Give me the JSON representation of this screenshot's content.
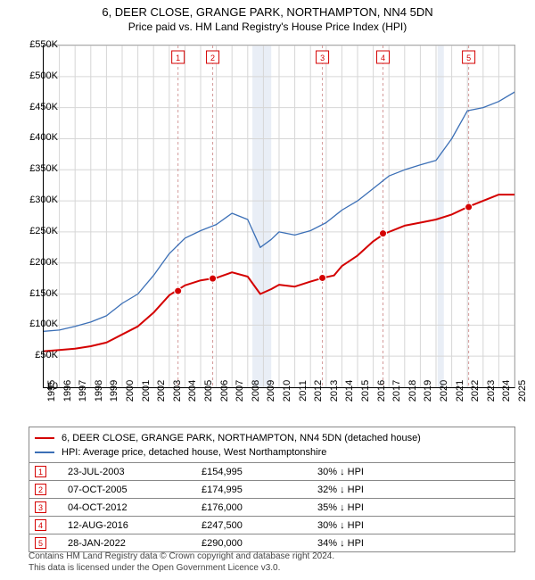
{
  "title": {
    "line1": "6, DEER CLOSE, GRANGE PARK, NORTHAMPTON, NN4 5DN",
    "line2": "Price paid vs. HM Land Registry's House Price Index (HPI)"
  },
  "chart": {
    "type": "line",
    "background_color": "#ffffff",
    "grid_color": "#d6d6d6",
    "recession_band_color": "#e9eef6",
    "axis_color": "#000000",
    "ylim": [
      0,
      550
    ],
    "ytick_step": 50,
    "y_unit_prefix": "£",
    "y_unit_suffix": "K",
    "x_years": [
      1995,
      1996,
      1997,
      1998,
      1999,
      2000,
      2001,
      2002,
      2003,
      2004,
      2005,
      2006,
      2007,
      2008,
      2009,
      2010,
      2011,
      2012,
      2013,
      2014,
      2015,
      2016,
      2017,
      2018,
      2019,
      2020,
      2021,
      2022,
      2023,
      2024,
      2025
    ],
    "recession_bands": [
      [
        2008.3,
        2009.5
      ],
      [
        2020.1,
        2020.5
      ]
    ],
    "series": [
      {
        "name": "property",
        "label": "6, DEER CLOSE, GRANGE PARK, NORTHAMPTON, NN4 5DN (detached house)",
        "color": "#d40000",
        "width": 2,
        "data": [
          [
            1995,
            58
          ],
          [
            1996,
            60
          ],
          [
            1997,
            62
          ],
          [
            1998,
            66
          ],
          [
            1999,
            72
          ],
          [
            2000,
            85
          ],
          [
            2001,
            98
          ],
          [
            2002,
            120
          ],
          [
            2003,
            148
          ],
          [
            2004,
            164
          ],
          [
            2005,
            172
          ],
          [
            2006,
            176
          ],
          [
            2007,
            185
          ],
          [
            2008,
            178
          ],
          [
            2008.8,
            150
          ],
          [
            2009.5,
            158
          ],
          [
            2010,
            165
          ],
          [
            2011,
            162
          ],
          [
            2012,
            170
          ],
          [
            2012.8,
            176
          ],
          [
            2013.5,
            180
          ],
          [
            2014,
            195
          ],
          [
            2015,
            212
          ],
          [
            2016,
            235
          ],
          [
            2016.7,
            247
          ],
          [
            2017.5,
            255
          ],
          [
            2018,
            260
          ],
          [
            2019,
            265
          ],
          [
            2020,
            270
          ],
          [
            2021,
            278
          ],
          [
            2022,
            290
          ],
          [
            2023,
            300
          ],
          [
            2024,
            310
          ],
          [
            2025,
            310
          ]
        ]
      },
      {
        "name": "hpi",
        "label": "HPI: Average price, detached house, West Northamptonshire",
        "color": "#3b6fb6",
        "width": 1.3,
        "data": [
          [
            1995,
            90
          ],
          [
            1996,
            92
          ],
          [
            1997,
            98
          ],
          [
            1998,
            105
          ],
          [
            1999,
            115
          ],
          [
            2000,
            135
          ],
          [
            2001,
            150
          ],
          [
            2002,
            180
          ],
          [
            2003,
            215
          ],
          [
            2004,
            240
          ],
          [
            2005,
            252
          ],
          [
            2006,
            262
          ],
          [
            2007,
            280
          ],
          [
            2008,
            270
          ],
          [
            2008.8,
            225
          ],
          [
            2009.5,
            238
          ],
          [
            2010,
            250
          ],
          [
            2011,
            245
          ],
          [
            2012,
            252
          ],
          [
            2013,
            265
          ],
          [
            2014,
            285
          ],
          [
            2015,
            300
          ],
          [
            2016,
            320
          ],
          [
            2017,
            340
          ],
          [
            2018,
            350
          ],
          [
            2019,
            358
          ],
          [
            2020,
            365
          ],
          [
            2021,
            400
          ],
          [
            2022,
            445
          ],
          [
            2023,
            450
          ],
          [
            2024,
            460
          ],
          [
            2025,
            475
          ]
        ]
      }
    ],
    "sale_markers": [
      {
        "n": 1,
        "x": 2003.56,
        "y": 155
      },
      {
        "n": 2,
        "x": 2005.77,
        "y": 175
      },
      {
        "n": 3,
        "x": 2012.76,
        "y": 176
      },
      {
        "n": 4,
        "x": 2016.62,
        "y": 247.5
      },
      {
        "n": 5,
        "x": 2022.08,
        "y": 290
      }
    ],
    "marker_color": "#d40000",
    "marker_box_border": "#d40000",
    "marker_vline_color": "#d49a9a",
    "label_fontsize": 11
  },
  "legend": {
    "border_color": "#888888"
  },
  "sales_table": [
    {
      "n": "1",
      "date": "23-JUL-2003",
      "price": "£154,995",
      "pct": "30% ↓ HPI"
    },
    {
      "n": "2",
      "date": "07-OCT-2005",
      "price": "£174,995",
      "pct": "32% ↓ HPI"
    },
    {
      "n": "3",
      "date": "04-OCT-2012",
      "price": "£176,000",
      "pct": "35% ↓ HPI"
    },
    {
      "n": "4",
      "date": "12-AUG-2016",
      "price": "£247,500",
      "pct": "30% ↓ HPI"
    },
    {
      "n": "5",
      "date": "28-JAN-2022",
      "price": "£290,000",
      "pct": "34% ↓ HPI"
    }
  ],
  "footer": {
    "line1": "Contains HM Land Registry data © Crown copyright and database right 2024.",
    "line2": "This data is licensed under the Open Government Licence v3.0."
  }
}
